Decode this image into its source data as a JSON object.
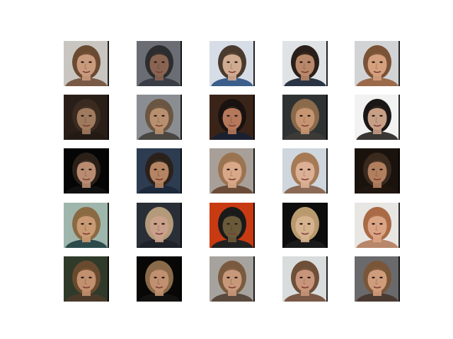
{
  "figure": {
    "background": "#ffffff"
  },
  "grid": {
    "rows": 5,
    "cols": 5,
    "samples": [
      {
        "bg": "#c9c6c2",
        "hair": "#6b4a32",
        "skin": "#c99a7c",
        "shirt": "#7a5a46"
      },
      {
        "bg": "#6a6d74",
        "hair": "#2d2c2f",
        "skin": "#8a6452",
        "shirt": "#3a3d45"
      },
      {
        "bg": "#d6dde6",
        "hair": "#4a3a2e",
        "skin": "#d1ab91",
        "shirt": "#3b5f8a"
      },
      {
        "bg": "#dfe3e6",
        "hair": "#2a1f1a",
        "skin": "#b9876a",
        "shirt": "#2b3444"
      },
      {
        "bg": "#d2d3d5",
        "hair": "#7a5236",
        "skin": "#d4a07e",
        "shirt": "#9a6a4a"
      },
      {
        "bg": "#2a1f18",
        "hair": "#3b2a20",
        "skin": "#a07a5e",
        "shirt": "#231a15"
      },
      {
        "bg": "#8a8e92",
        "hair": "#6a5642",
        "skin": "#b8906f",
        "shirt": "#4a4642"
      },
      {
        "bg": "#3a2418",
        "hair": "#1a1210",
        "skin": "#b5785a",
        "shirt": "#1b2030"
      },
      {
        "bg": "#2f3233",
        "hair": "#8a6a4a",
        "skin": "#c79572",
        "shirt": "#3b3a36"
      },
      {
        "bg": "#f2f2f2",
        "hair": "#1b1716",
        "skin": "#c79f86",
        "shirt": "#3a3634"
      },
      {
        "bg": "#050505",
        "hair": "#2a2018",
        "skin": "#b98c72",
        "shirt": "#101010"
      },
      {
        "bg": "#2e3c52",
        "hair": "#2b211b",
        "skin": "#b58462",
        "shirt": "#1d2a3c"
      },
      {
        "bg": "#a8a098",
        "hair": "#9a7350",
        "skin": "#d8a888",
        "shirt": "#6b4c38"
      },
      {
        "bg": "#cfd6dd",
        "hair": "#a57a55",
        "skin": "#ddb096",
        "shirt": "#8a6a56"
      },
      {
        "bg": "#1a120d",
        "hair": "#3a2a1e",
        "skin": "#b27f5e",
        "shirt": "#20160f"
      },
      {
        "bg": "#9fb6ad",
        "hair": "#8a6a42",
        "skin": "#c99a74",
        "shirt": "#2d4a4a"
      },
      {
        "bg": "#2a2e36",
        "hair": "#b39a7a",
        "skin": "#c9a08a",
        "shirt": "#1f2228"
      },
      {
        "bg": "#c83a12",
        "hair": "#1a1a1a",
        "skin": "#6a5a3a",
        "shirt": "#222222"
      },
      {
        "bg": "#0d0d0d",
        "hair": "#b89a6e",
        "skin": "#d6b38f",
        "shirt": "#1b1b1b"
      },
      {
        "bg": "#e8e6e3",
        "hair": "#a96a45",
        "skin": "#dba585",
        "shirt": "#b8866a"
      },
      {
        "bg": "#2f3a2a",
        "hair": "#6a4a2e",
        "skin": "#c1906e",
        "shirt": "#4a3a2a"
      },
      {
        "bg": "#080706",
        "hair": "#8a6a48",
        "skin": "#c09070",
        "shirt": "#141210"
      },
      {
        "bg": "#a6a39e",
        "hair": "#7a5a3e",
        "skin": "#c8987a",
        "shirt": "#5a4a3e"
      },
      {
        "bg": "#d9dcdc",
        "hair": "#6e4f38",
        "skin": "#c9957a",
        "shirt": "#7a5846"
      },
      {
        "bg": "#6a6a6c",
        "hair": "#7a5638",
        "skin": "#cf9c7c",
        "shirt": "#4a3a32"
      }
    ]
  }
}
